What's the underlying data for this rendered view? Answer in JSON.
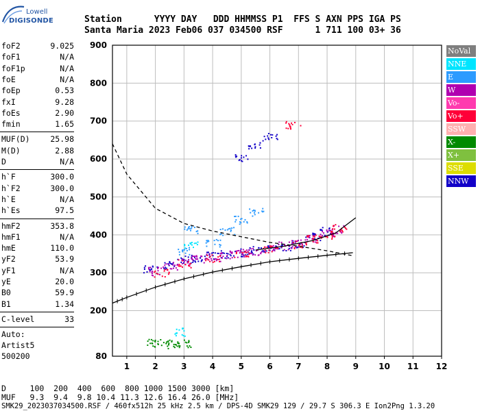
{
  "logo": {
    "top": "Lowell",
    "main": "DIGISONDE"
  },
  "header": {
    "line1": "Station      YYYY DAY   DDD HHMMSS P1  FFS S AXN PPS IGA PS",
    "line2": "Santa Maria 2023 Feb06 037 034500 RSF      1 711 100 03+ 36"
  },
  "params": {
    "group1": [
      {
        "name": "foF2",
        "value": "9.025"
      },
      {
        "name": "foF1",
        "value": "N/A"
      },
      {
        "name": "foF1p",
        "value": "N/A"
      },
      {
        "name": "foE",
        "value": "N/A"
      },
      {
        "name": "foEp",
        "value": "0.53"
      },
      {
        "name": "fxI",
        "value": "9.28"
      },
      {
        "name": "foEs",
        "value": "2.90"
      },
      {
        "name": "fmin",
        "value": "1.65"
      }
    ],
    "group2": [
      {
        "name": "MUF(D)",
        "value": "25.98"
      },
      {
        "name": "M(D)",
        "value": "2.88"
      },
      {
        "name": "D",
        "value": "N/A"
      }
    ],
    "group3": [
      {
        "name": "h`F",
        "value": "300.0"
      },
      {
        "name": "h`F2",
        "value": "300.0"
      },
      {
        "name": "h`E",
        "value": "N/A"
      },
      {
        "name": "h`Es",
        "value": "97.5"
      }
    ],
    "group4": [
      {
        "name": "hmF2",
        "value": "353.8"
      },
      {
        "name": "hmF1",
        "value": "N/A"
      },
      {
        "name": "hmE",
        "value": "110.0"
      },
      {
        "name": "yF2",
        "value": "53.9"
      },
      {
        "name": "yF1",
        "value": "N/A"
      },
      {
        "name": "yE",
        "value": "20.0"
      },
      {
        "name": "B0",
        "value": "59.9"
      },
      {
        "name": "B1",
        "value": "1.34"
      }
    ],
    "clevel": {
      "name": "C-level",
      "value": "33"
    },
    "auto": [
      "Auto:",
      "Artist5",
      "500200"
    ]
  },
  "legend": [
    {
      "label": "NoVal",
      "color": "#7f7f7f"
    },
    {
      "label": "NNE",
      "color": "#00e5ff"
    },
    {
      "label": "E",
      "color": "#2c9bff"
    },
    {
      "label": "W",
      "color": "#b000b0"
    },
    {
      "label": "Vo-",
      "color": "#ff3aaf"
    },
    {
      "label": "Vo+",
      "color": "#ff0038"
    },
    {
      "label": "SSW",
      "color": "#ffb0b0"
    },
    {
      "label": "X-",
      "color": "#008a00"
    },
    {
      "label": "X+",
      "color": "#7fc03f"
    },
    {
      "label": "SSE",
      "color": "#dddd00"
    },
    {
      "label": "NNW",
      "color": "#1200c8"
    }
  ],
  "chart_data": {
    "type": "scatter",
    "xlim": [
      0.5,
      12
    ],
    "ylim": [
      80,
      900
    ],
    "x_ticks": [
      "1",
      "2",
      "3",
      "4",
      "5",
      "6",
      "7",
      "8",
      "9",
      "10",
      "11",
      "12"
    ],
    "y_ticks": [
      "80",
      "200",
      "300",
      "400",
      "500",
      "600",
      "700",
      "800",
      "900"
    ],
    "grid": true,
    "series": [
      {
        "name": "NNW",
        "points": [
          [
            1.8,
            310
          ],
          [
            2.5,
            322
          ],
          [
            3.0,
            335
          ],
          [
            3.5,
            340
          ],
          [
            4.0,
            345
          ],
          [
            4.5,
            350
          ],
          [
            5.0,
            355
          ],
          [
            5.5,
            360
          ],
          [
            6.0,
            362
          ],
          [
            6.5,
            370
          ],
          [
            7.0,
            378
          ],
          [
            7.5,
            395
          ],
          [
            8.0,
            410
          ],
          [
            5.0,
            605
          ],
          [
            5.5,
            635
          ],
          [
            6.0,
            660
          ]
        ]
      },
      {
        "name": "W",
        "points": [
          [
            2.0,
            305
          ],
          [
            2.5,
            318
          ],
          [
            3.0,
            330
          ],
          [
            3.5,
            338
          ],
          [
            4.0,
            342
          ],
          [
            4.5,
            348
          ],
          [
            5.0,
            352
          ],
          [
            5.5,
            358
          ],
          [
            6.0,
            365
          ],
          [
            6.5,
            372
          ],
          [
            7.0,
            380
          ],
          [
            7.5,
            392
          ],
          [
            8.0,
            405
          ],
          [
            8.3,
            415
          ]
        ]
      },
      {
        "name": "Vo+",
        "points": [
          [
            2.2,
            300
          ],
          [
            3.0,
            325
          ],
          [
            4.0,
            338
          ],
          [
            5.0,
            350
          ],
          [
            6.0,
            362
          ],
          [
            7.0,
            375
          ],
          [
            7.5,
            390
          ],
          [
            8.0,
            400
          ],
          [
            8.4,
            420
          ],
          [
            6.8,
            690
          ]
        ]
      },
      {
        "name": "E",
        "points": [
          [
            4.0,
            380
          ],
          [
            4.5,
            410
          ],
          [
            5.0,
            440
          ],
          [
            5.5,
            460
          ],
          [
            3.0,
            360
          ],
          [
            3.2,
            415
          ]
        ]
      },
      {
        "name": "NNE",
        "points": [
          [
            3.2,
            375
          ],
          [
            2.9,
            145
          ]
        ]
      },
      {
        "name": "X-",
        "points": [
          [
            1.9,
            115
          ],
          [
            2.2,
            112
          ],
          [
            2.6,
            113
          ],
          [
            3.0,
            115
          ]
        ]
      }
    ],
    "curves": {
      "virtual_height_trace": [
        [
          0.5,
          220
        ],
        [
          1,
          235
        ],
        [
          2,
          262
        ],
        [
          3,
          284
        ],
        [
          4,
          302
        ],
        [
          5,
          316
        ],
        [
          6,
          329
        ],
        [
          7,
          338
        ],
        [
          8,
          346
        ],
        [
          8.9,
          353
        ]
      ],
      "profile_dashed": [
        [
          0.5,
          640
        ],
        [
          1,
          560
        ],
        [
          2,
          470
        ],
        [
          3,
          430
        ],
        [
          4,
          410
        ],
        [
          5,
          395
        ],
        [
          6,
          380
        ],
        [
          7,
          370
        ],
        [
          8,
          358
        ],
        [
          8.9,
          345
        ]
      ],
      "profile_solid": [
        [
          5.5,
          360
        ],
        [
          6.5,
          370
        ],
        [
          7.5,
          385
        ],
        [
          8.3,
          405
        ],
        [
          9.0,
          445
        ]
      ]
    }
  },
  "footer": {
    "line1": "D     100  200  400  600  800 1000 1500 3000 [km]",
    "line2": "MUF   9.3  9.4  9.8 10.4 11.3 12.6 16.4 26.0 [MHz]",
    "line3": "SMK29_2023037034500.RSF / 460fx512h 25 kHz 2.5 km / DPS-4D SMK29 129 / 29.7 S 306.3 E Ion2Png 1.3.20"
  }
}
